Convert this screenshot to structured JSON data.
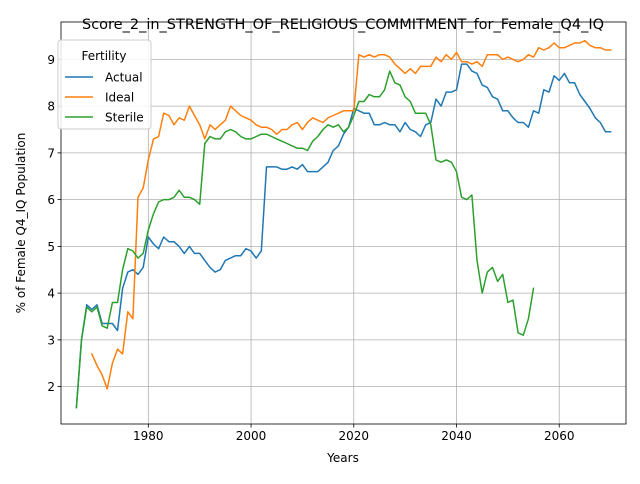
{
  "chart_data": {
    "type": "line",
    "title": "Score_2_in_STRENGTH_OF_RELIGIOUS_COMMITMENT_for_Female_Q4_IQ",
    "xlabel": "Years",
    "ylabel": "% of Female Q4_IQ Population",
    "xlim": [
      1963,
      2073
    ],
    "ylim": [
      1.2,
      9.8
    ],
    "x_ticks": [
      1980,
      2000,
      2020,
      2040,
      2060
    ],
    "y_ticks": [
      2,
      3,
      4,
      5,
      6,
      7,
      8,
      9
    ],
    "grid": true,
    "legend": {
      "title": "Fertility",
      "placement": "top-left"
    },
    "series": [
      {
        "name": "Actual",
        "color": "#1f77b4",
        "points": [
          [
            1966,
            1.55
          ],
          [
            1967,
            3.0
          ],
          [
            1968,
            3.75
          ],
          [
            1969,
            3.65
          ],
          [
            1970,
            3.75
          ],
          [
            1971,
            3.35
          ],
          [
            1972,
            3.35
          ],
          [
            1973,
            3.35
          ],
          [
            1974,
            3.2
          ],
          [
            1975,
            4.1
          ],
          [
            1976,
            4.45
          ],
          [
            1977,
            4.5
          ],
          [
            1978,
            4.4
          ],
          [
            1979,
            4.55
          ],
          [
            1980,
            5.2
          ],
          [
            1981,
            5.05
          ],
          [
            1982,
            4.95
          ],
          [
            1983,
            5.2
          ],
          [
            1984,
            5.1
          ],
          [
            1985,
            5.1
          ],
          [
            1986,
            5.0
          ],
          [
            1987,
            4.85
          ],
          [
            1988,
            5.0
          ],
          [
            1989,
            4.85
          ],
          [
            1990,
            4.85
          ],
          [
            1991,
            4.7
          ],
          [
            1992,
            4.55
          ],
          [
            1993,
            4.45
          ],
          [
            1994,
            4.5
          ],
          [
            1995,
            4.7
          ],
          [
            1996,
            4.75
          ],
          [
            1997,
            4.8
          ],
          [
            1998,
            4.8
          ],
          [
            1999,
            4.95
          ],
          [
            2000,
            4.9
          ],
          [
            2001,
            4.75
          ],
          [
            2002,
            4.9
          ],
          [
            2003,
            6.7
          ],
          [
            2004,
            6.7
          ],
          [
            2005,
            6.7
          ],
          [
            2006,
            6.65
          ],
          [
            2007,
            6.65
          ],
          [
            2008,
            6.7
          ],
          [
            2009,
            6.65
          ],
          [
            2010,
            6.75
          ],
          [
            2011,
            6.6
          ],
          [
            2012,
            6.6
          ],
          [
            2013,
            6.6
          ],
          [
            2014,
            6.7
          ],
          [
            2015,
            6.8
          ],
          [
            2016,
            7.05
          ],
          [
            2017,
            7.15
          ],
          [
            2018,
            7.4
          ],
          [
            2019,
            7.55
          ],
          [
            2020,
            7.95
          ],
          [
            2021,
            7.9
          ],
          [
            2022,
            7.85
          ],
          [
            2023,
            7.85
          ],
          [
            2024,
            7.6
          ],
          [
            2025,
            7.6
          ],
          [
            2026,
            7.65
          ],
          [
            2027,
            7.6
          ],
          [
            2028,
            7.6
          ],
          [
            2029,
            7.45
          ],
          [
            2030,
            7.65
          ],
          [
            2031,
            7.5
          ],
          [
            2032,
            7.45
          ],
          [
            2033,
            7.35
          ],
          [
            2034,
            7.6
          ],
          [
            2035,
            7.65
          ],
          [
            2036,
            8.15
          ],
          [
            2037,
            8.0
          ],
          [
            2038,
            8.3
          ],
          [
            2039,
            8.3
          ],
          [
            2040,
            8.35
          ],
          [
            2041,
            8.9
          ],
          [
            2042,
            8.9
          ],
          [
            2043,
            8.75
          ],
          [
            2044,
            8.7
          ],
          [
            2045,
            8.45
          ],
          [
            2046,
            8.4
          ],
          [
            2047,
            8.2
          ],
          [
            2048,
            8.15
          ],
          [
            2049,
            7.9
          ],
          [
            2050,
            7.9
          ],
          [
            2051,
            7.75
          ],
          [
            2052,
            7.65
          ],
          [
            2053,
            7.65
          ],
          [
            2054,
            7.55
          ],
          [
            2055,
            7.9
          ],
          [
            2056,
            7.85
          ],
          [
            2057,
            8.35
          ],
          [
            2058,
            8.3
          ],
          [
            2059,
            8.65
          ],
          [
            2060,
            8.55
          ],
          [
            2061,
            8.7
          ],
          [
            2062,
            8.5
          ],
          [
            2063,
            8.5
          ],
          [
            2064,
            8.25
          ],
          [
            2065,
            8.1
          ],
          [
            2066,
            7.95
          ],
          [
            2067,
            7.75
          ],
          [
            2068,
            7.65
          ],
          [
            2069,
            7.45
          ],
          [
            2070,
            7.45
          ]
        ]
      },
      {
        "name": "Ideal",
        "color": "#ff7f0e",
        "points": [
          [
            1969,
            2.7
          ],
          [
            1970,
            2.45
          ],
          [
            1971,
            2.25
          ],
          [
            1972,
            1.95
          ],
          [
            1973,
            2.5
          ],
          [
            1974,
            2.8
          ],
          [
            1975,
            2.7
          ],
          [
            1976,
            3.6
          ],
          [
            1977,
            3.45
          ],
          [
            1978,
            6.05
          ],
          [
            1979,
            6.25
          ],
          [
            1980,
            6.85
          ],
          [
            1981,
            7.3
          ],
          [
            1982,
            7.35
          ],
          [
            1983,
            7.85
          ],
          [
            1984,
            7.8
          ],
          [
            1985,
            7.6
          ],
          [
            1986,
            7.75
          ],
          [
            1987,
            7.7
          ],
          [
            1988,
            8.0
          ],
          [
            1989,
            7.8
          ],
          [
            1990,
            7.6
          ],
          [
            1991,
            7.3
          ],
          [
            1992,
            7.6
          ],
          [
            1993,
            7.5
          ],
          [
            1994,
            7.6
          ],
          [
            1995,
            7.7
          ],
          [
            1996,
            8.0
          ],
          [
            1997,
            7.9
          ],
          [
            1998,
            7.8
          ],
          [
            1999,
            7.75
          ],
          [
            2000,
            7.7
          ],
          [
            2001,
            7.6
          ],
          [
            2002,
            7.55
          ],
          [
            2003,
            7.55
          ],
          [
            2004,
            7.5
          ],
          [
            2005,
            7.4
          ],
          [
            2006,
            7.5
          ],
          [
            2007,
            7.5
          ],
          [
            2008,
            7.6
          ],
          [
            2009,
            7.65
          ],
          [
            2010,
            7.5
          ],
          [
            2011,
            7.65
          ],
          [
            2012,
            7.75
          ],
          [
            2013,
            7.7
          ],
          [
            2014,
            7.65
          ],
          [
            2015,
            7.75
          ],
          [
            2016,
            7.8
          ],
          [
            2017,
            7.85
          ],
          [
            2018,
            7.9
          ],
          [
            2019,
            7.9
          ],
          [
            2020,
            7.9
          ],
          [
            2021,
            9.1
          ],
          [
            2022,
            9.05
          ],
          [
            2023,
            9.1
          ],
          [
            2024,
            9.05
          ],
          [
            2025,
            9.1
          ],
          [
            2026,
            9.1
          ],
          [
            2027,
            9.05
          ],
          [
            2028,
            8.9
          ],
          [
            2029,
            8.8
          ],
          [
            2030,
            8.7
          ],
          [
            2031,
            8.8
          ],
          [
            2032,
            8.7
          ],
          [
            2033,
            8.85
          ],
          [
            2034,
            8.85
          ],
          [
            2035,
            8.85
          ],
          [
            2036,
            9.05
          ],
          [
            2037,
            8.95
          ],
          [
            2038,
            9.1
          ],
          [
            2039,
            9.0
          ],
          [
            2040,
            9.15
          ],
          [
            2041,
            8.95
          ],
          [
            2042,
            8.95
          ],
          [
            2043,
            8.9
          ],
          [
            2044,
            8.95
          ],
          [
            2045,
            8.85
          ],
          [
            2046,
            9.1
          ],
          [
            2047,
            9.1
          ],
          [
            2048,
            9.1
          ],
          [
            2049,
            9.0
          ],
          [
            2050,
            9.05
          ],
          [
            2051,
            9.0
          ],
          [
            2052,
            8.95
          ],
          [
            2053,
            9.0
          ],
          [
            2054,
            9.1
          ],
          [
            2055,
            9.05
          ],
          [
            2056,
            9.25
          ],
          [
            2057,
            9.2
          ],
          [
            2058,
            9.25
          ],
          [
            2059,
            9.35
          ],
          [
            2060,
            9.25
          ],
          [
            2061,
            9.25
          ],
          [
            2062,
            9.3
          ],
          [
            2063,
            9.35
          ],
          [
            2064,
            9.35
          ],
          [
            2065,
            9.4
          ],
          [
            2066,
            9.3
          ],
          [
            2067,
            9.25
          ],
          [
            2068,
            9.25
          ],
          [
            2069,
            9.2
          ],
          [
            2070,
            9.2
          ]
        ]
      },
      {
        "name": "Sterile",
        "color": "#2ca02c",
        "points": [
          [
            1966,
            1.55
          ],
          [
            1967,
            3.0
          ],
          [
            1968,
            3.7
          ],
          [
            1969,
            3.6
          ],
          [
            1970,
            3.7
          ],
          [
            1971,
            3.3
          ],
          [
            1972,
            3.25
          ],
          [
            1973,
            3.8
          ],
          [
            1974,
            3.8
          ],
          [
            1975,
            4.5
          ],
          [
            1976,
            4.95
          ],
          [
            1977,
            4.9
          ],
          [
            1978,
            4.75
          ],
          [
            1979,
            4.85
          ],
          [
            1980,
            5.35
          ],
          [
            1981,
            5.7
          ],
          [
            1982,
            5.95
          ],
          [
            1983,
            6.0
          ],
          [
            1984,
            6.0
          ],
          [
            1985,
            6.05
          ],
          [
            1986,
            6.2
          ],
          [
            1987,
            6.05
          ],
          [
            1988,
            6.05
          ],
          [
            1989,
            6.0
          ],
          [
            1990,
            5.9
          ],
          [
            1991,
            7.2
          ],
          [
            1992,
            7.35
          ],
          [
            1993,
            7.3
          ],
          [
            1994,
            7.3
          ],
          [
            1995,
            7.45
          ],
          [
            1996,
            7.5
          ],
          [
            1997,
            7.45
          ],
          [
            1998,
            7.35
          ],
          [
            1999,
            7.3
          ],
          [
            2000,
            7.3
          ],
          [
            2001,
            7.35
          ],
          [
            2002,
            7.4
          ],
          [
            2003,
            7.4
          ],
          [
            2004,
            7.35
          ],
          [
            2005,
            7.3
          ],
          [
            2006,
            7.25
          ],
          [
            2007,
            7.2
          ],
          [
            2008,
            7.15
          ],
          [
            2009,
            7.1
          ],
          [
            2010,
            7.1
          ],
          [
            2011,
            7.05
          ],
          [
            2012,
            7.25
          ],
          [
            2013,
            7.35
          ],
          [
            2014,
            7.5
          ],
          [
            2015,
            7.6
          ],
          [
            2016,
            7.55
          ],
          [
            2017,
            7.6
          ],
          [
            2018,
            7.45
          ],
          [
            2019,
            7.55
          ],
          [
            2020,
            7.8
          ],
          [
            2021,
            8.1
          ],
          [
            2022,
            8.1
          ],
          [
            2023,
            8.25
          ],
          [
            2024,
            8.2
          ],
          [
            2025,
            8.2
          ],
          [
            2026,
            8.35
          ],
          [
            2027,
            8.75
          ],
          [
            2028,
            8.5
          ],
          [
            2029,
            8.45
          ],
          [
            2030,
            8.2
          ],
          [
            2031,
            8.1
          ],
          [
            2032,
            7.85
          ],
          [
            2033,
            7.85
          ],
          [
            2034,
            7.85
          ],
          [
            2035,
            7.6
          ],
          [
            2036,
            6.85
          ],
          [
            2037,
            6.8
          ],
          [
            2038,
            6.85
          ],
          [
            2039,
            6.8
          ],
          [
            2040,
            6.6
          ],
          [
            2041,
            6.05
          ],
          [
            2042,
            6.0
          ],
          [
            2043,
            6.1
          ],
          [
            2044,
            4.7
          ],
          [
            2045,
            4.0
          ],
          [
            2046,
            4.45
          ],
          [
            2047,
            4.55
          ],
          [
            2048,
            4.25
          ],
          [
            2049,
            4.4
          ],
          [
            2050,
            3.8
          ],
          [
            2051,
            3.85
          ],
          [
            2052,
            3.15
          ],
          [
            2053,
            3.1
          ],
          [
            2054,
            3.45
          ],
          [
            2055,
            4.1
          ]
        ]
      }
    ]
  }
}
